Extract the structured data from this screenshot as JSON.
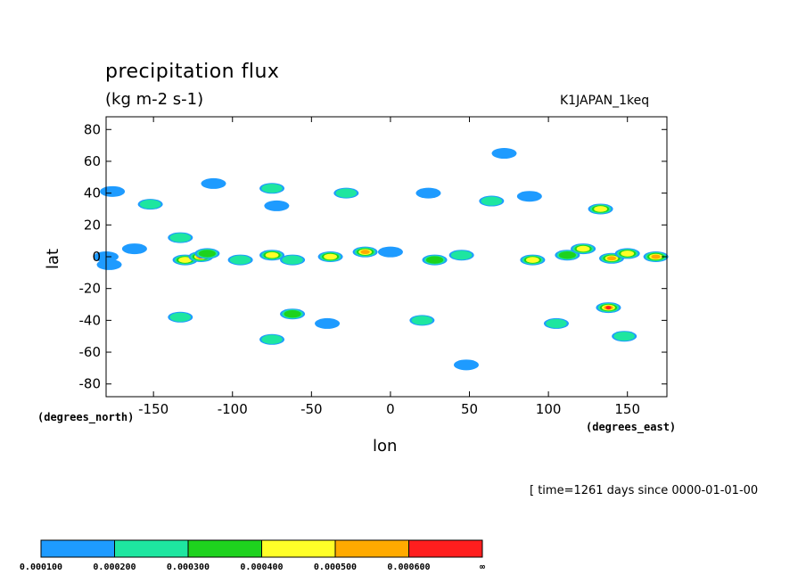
{
  "chart_data": {
    "type": "heatmap",
    "title": "precipitation flux",
    "units": "(kg m-2 s-1)",
    "run_label": "K1JAPAN_1keq",
    "xlabel": "lon",
    "ylabel": "lat",
    "x_unit_label": "(degrees_east)",
    "y_unit_label": "(degrees_north)",
    "time_label": "[ time=1261 days since 0000-01-01-00",
    "xlim": [
      -180,
      175
    ],
    "ylim": [
      -88,
      88
    ],
    "x_ticks": [
      -150,
      -100,
      -50,
      0,
      50,
      100,
      150
    ],
    "y_ticks": [
      80,
      60,
      40,
      20,
      0,
      -20,
      -40,
      -60,
      -80
    ],
    "x_tick_labels": [
      "-150",
      "-100",
      "-50",
      "0",
      "50",
      "100",
      "150"
    ],
    "y_tick_labels": [
      "80",
      "60",
      "40",
      "20",
      "0",
      "-20",
      "-40",
      "-60",
      "-80"
    ],
    "levels": [
      0.0001,
      0.0002,
      0.0003,
      0.0004,
      0.0005,
      0.0006
    ],
    "colorbar_labels": [
      "0.000100",
      "0.000200",
      "0.000300",
      "0.000400",
      "0.000500",
      "0.000600",
      "∞"
    ],
    "colors": [
      "#1e9bff",
      "#1ee6a0",
      "#1ed21e",
      "#ffff28",
      "#ffaa00",
      "#ff1e1e"
    ],
    "regions": [
      {
        "lon": -180,
        "lat": 0,
        "level": 1
      },
      {
        "lon": -178,
        "lat": -5,
        "level": 1
      },
      {
        "lon": -176,
        "lat": 41,
        "level": 1
      },
      {
        "lon": -162,
        "lat": 5,
        "level": 1
      },
      {
        "lon": -152,
        "lat": 33,
        "level": 2
      },
      {
        "lon": -133,
        "lat": 12,
        "level": 2
      },
      {
        "lon": -130,
        "lat": -2,
        "level": 4
      },
      {
        "lon": -120,
        "lat": 0,
        "level": 6
      },
      {
        "lon": -116,
        "lat": 2,
        "level": 3
      },
      {
        "lon": -133,
        "lat": -38,
        "level": 2
      },
      {
        "lon": -112,
        "lat": 46,
        "level": 1
      },
      {
        "lon": -95,
        "lat": -2,
        "level": 2
      },
      {
        "lon": -75,
        "lat": 1,
        "level": 4
      },
      {
        "lon": -62,
        "lat": -2,
        "level": 2
      },
      {
        "lon": -75,
        "lat": 43,
        "level": 2
      },
      {
        "lon": -72,
        "lat": 32,
        "level": 1
      },
      {
        "lon": -62,
        "lat": -36,
        "level": 3
      },
      {
        "lon": -75,
        "lat": -52,
        "level": 2
      },
      {
        "lon": -38,
        "lat": 0,
        "level": 4
      },
      {
        "lon": -16,
        "lat": 3,
        "level": 5
      },
      {
        "lon": -28,
        "lat": 40,
        "level": 2
      },
      {
        "lon": 0,
        "lat": 3,
        "level": 1
      },
      {
        "lon": 28,
        "lat": -2,
        "level": 3
      },
      {
        "lon": 45,
        "lat": 1,
        "level": 2
      },
      {
        "lon": 24,
        "lat": 40,
        "level": 1
      },
      {
        "lon": 64,
        "lat": 35,
        "level": 2
      },
      {
        "lon": 72,
        "lat": 65,
        "level": 1
      },
      {
        "lon": 88,
        "lat": 38,
        "level": 1
      },
      {
        "lon": 90,
        "lat": -2,
        "level": 4
      },
      {
        "lon": 112,
        "lat": 1,
        "level": 3
      },
      {
        "lon": 122,
        "lat": 5,
        "level": 4
      },
      {
        "lon": 133,
        "lat": 30,
        "level": 4
      },
      {
        "lon": 138,
        "lat": -32,
        "level": 6
      },
      {
        "lon": 148,
        "lat": -50,
        "level": 2
      },
      {
        "lon": 140,
        "lat": -1,
        "level": 5
      },
      {
        "lon": 150,
        "lat": 2,
        "level": 4
      },
      {
        "lon": 168,
        "lat": 0,
        "level": 5
      },
      {
        "lon": 105,
        "lat": -42,
        "level": 2
      },
      {
        "lon": -40,
        "lat": -42,
        "level": 1
      },
      {
        "lon": 20,
        "lat": -40,
        "level": 2
      },
      {
        "lon": 48,
        "lat": -68,
        "level": 1
      }
    ]
  }
}
